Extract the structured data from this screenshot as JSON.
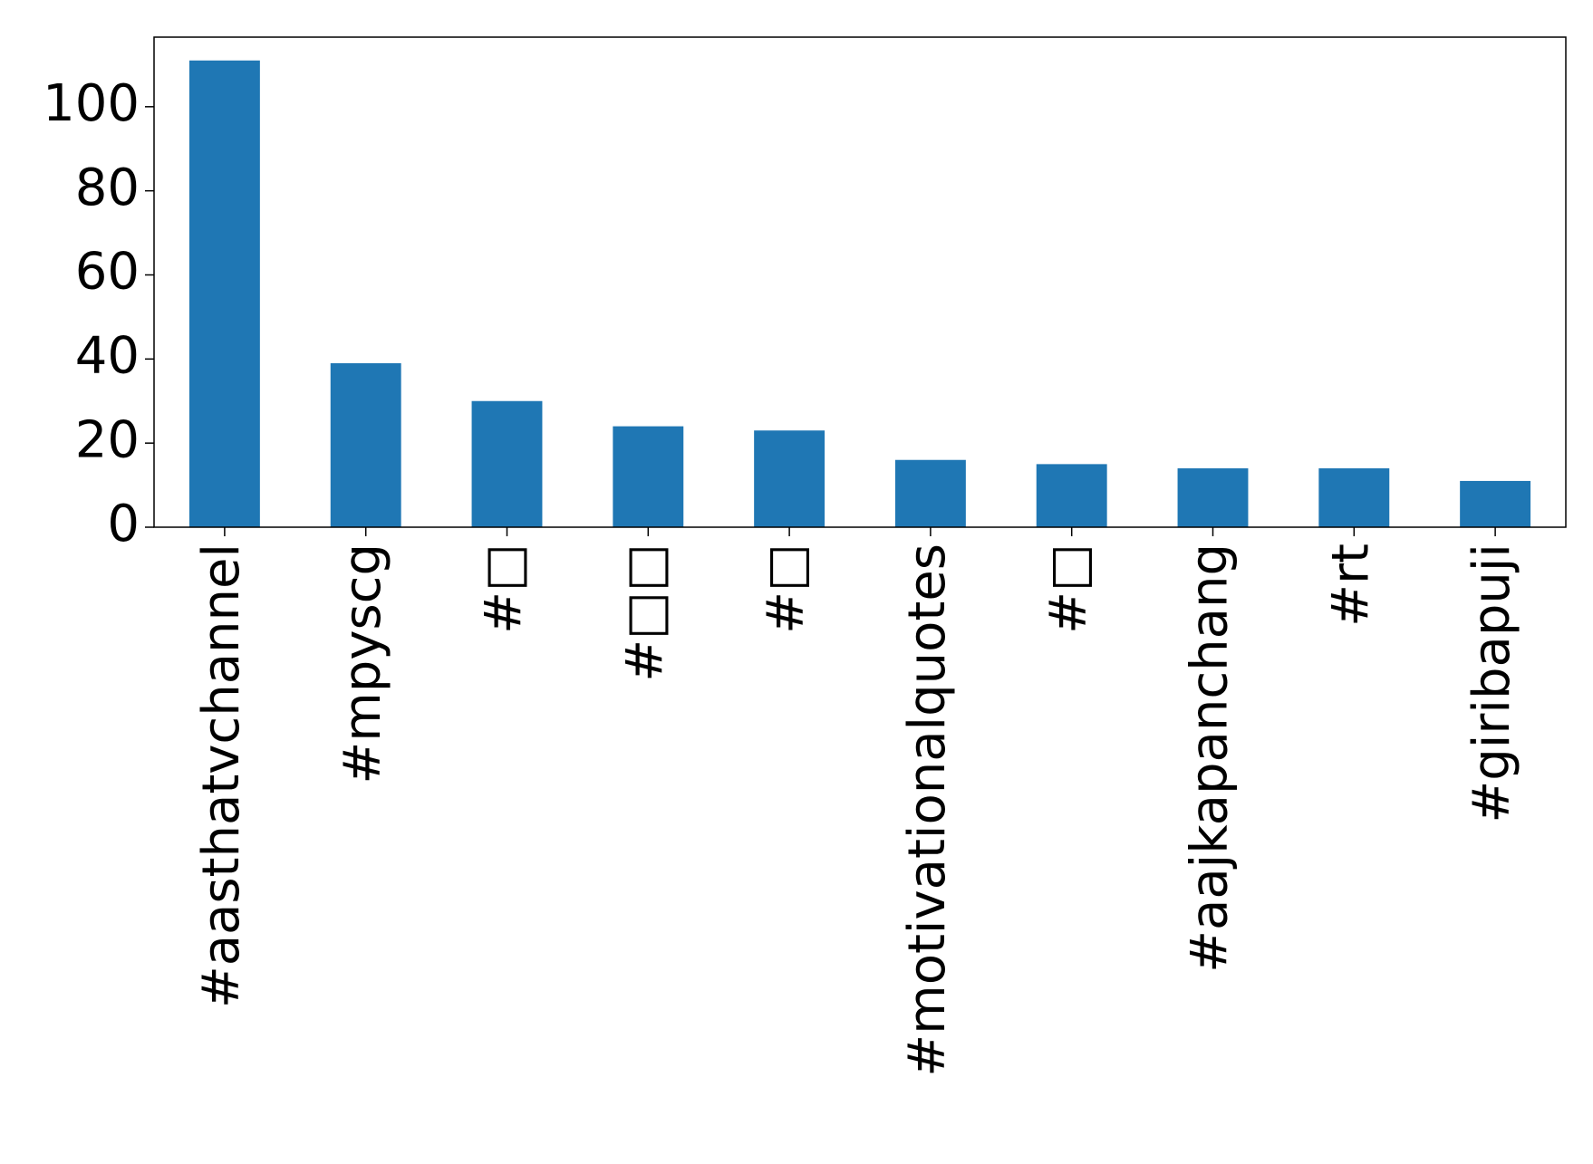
{
  "chart_data": {
    "type": "bar",
    "categories": [
      "#aasthatvchannel",
      "#mpyscg",
      "#□",
      "#□□",
      "#□",
      "#motivationalquotes",
      "#□",
      "#aajkapanchang",
      "#rt",
      "#giribapuji"
    ],
    "values": [
      111,
      39,
      30,
      24,
      23,
      16,
      15,
      14,
      14,
      11
    ],
    "color": "#1f77b4",
    "ylim": [
      0,
      116.55
    ],
    "yticks": [
      0,
      20,
      40,
      60,
      80,
      100
    ],
    "grid": false
  }
}
